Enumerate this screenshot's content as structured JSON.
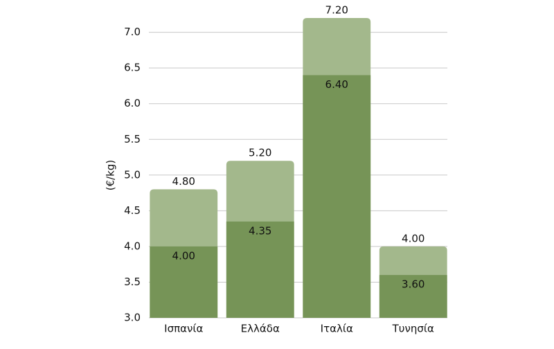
{
  "chart_data": {
    "type": "bar",
    "overlap": true,
    "y_label": "(€/kg)",
    "categories": [
      "Ισπανία",
      "Ελλάδα",
      "Ιταλία",
      "Τυνησία"
    ],
    "series": [
      {
        "color": "#a3b88c",
        "values": [
          4.8,
          5.2,
          7.2,
          4.0
        ],
        "value_labels": [
          "4.80",
          "5.20",
          "7.20",
          "4.00"
        ]
      },
      {
        "color": "#769457",
        "values": [
          4.0,
          4.35,
          6.4,
          3.6
        ],
        "value_labels": [
          "4.00",
          "4.35",
          "6.40",
          "3.60"
        ]
      }
    ],
    "ylim": [
      3,
      7.2
    ],
    "yticks": [
      {
        "value": 3,
        "label": "3.0"
      },
      3.5,
      {
        "value": 4,
        "label": "4.0"
      },
      4.5,
      {
        "value": 5,
        "label": "5.0"
      },
      5.5,
      {
        "value": 6,
        "label": "6.0"
      },
      6.5,
      {
        "value": 7,
        "label": "7.0"
      }
    ],
    "grid": true
  }
}
